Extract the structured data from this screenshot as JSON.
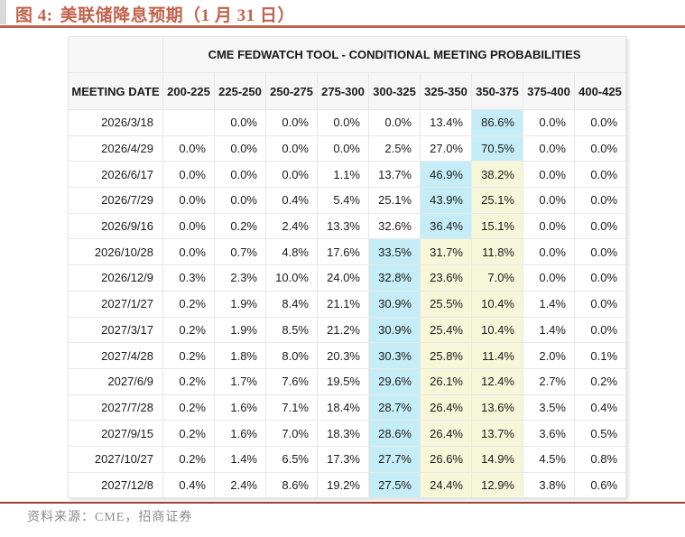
{
  "header": {
    "figure_label": "图 4:",
    "figure_title": "美联储降息预期（1 月 31 日）"
  },
  "footer": {
    "source": "资料来源：CME，招商证券"
  },
  "colors": {
    "accent": "#C2634D",
    "bottom_rule": "#9E4331",
    "header_bg": "#F6F6F6",
    "highlight_blue": "#C5EDF7",
    "highlight_yellow": "#F6F6D9"
  },
  "chart_data": {
    "type": "table",
    "title": "CME FEDWATCH TOOL - CONDITIONAL MEETING PROBABILITIES",
    "date_header": "MEETING DATE",
    "rate_ranges": [
      "200-225",
      "225-250",
      "250-275",
      "275-300",
      "300-325",
      "325-350",
      "350-375",
      "375-400",
      "400-425"
    ],
    "rows": [
      {
        "date": "2026/3/18",
        "values": [
          "",
          "0.0%",
          "0.0%",
          "0.0%",
          "0.0%",
          "13.4%",
          "86.6%",
          "0.0%",
          "0.0%"
        ],
        "highlights": {
          "6": "blue"
        }
      },
      {
        "date": "2026/4/29",
        "values": [
          "0.0%",
          "0.0%",
          "0.0%",
          "0.0%",
          "2.5%",
          "27.0%",
          "70.5%",
          "0.0%",
          "0.0%"
        ],
        "highlights": {
          "6": "blue"
        }
      },
      {
        "date": "2026/6/17",
        "values": [
          "0.0%",
          "0.0%",
          "0.0%",
          "1.1%",
          "13.7%",
          "46.9%",
          "38.2%",
          "0.0%",
          "0.0%"
        ],
        "highlights": {
          "5": "blue",
          "6": "yellow"
        }
      },
      {
        "date": "2026/7/29",
        "values": [
          "0.0%",
          "0.0%",
          "0.4%",
          "5.4%",
          "25.1%",
          "43.9%",
          "25.1%",
          "0.0%",
          "0.0%"
        ],
        "highlights": {
          "5": "blue",
          "6": "yellow"
        }
      },
      {
        "date": "2026/9/16",
        "values": [
          "0.0%",
          "0.2%",
          "2.4%",
          "13.3%",
          "32.6%",
          "36.4%",
          "15.1%",
          "0.0%",
          "0.0%"
        ],
        "highlights": {
          "5": "blue",
          "6": "yellow"
        }
      },
      {
        "date": "2026/10/28",
        "values": [
          "0.0%",
          "0.7%",
          "4.8%",
          "17.6%",
          "33.5%",
          "31.7%",
          "11.8%",
          "0.0%",
          "0.0%"
        ],
        "highlights": {
          "4": "blue",
          "5": "yellow",
          "6": "yellow"
        }
      },
      {
        "date": "2026/12/9",
        "values": [
          "0.3%",
          "2.3%",
          "10.0%",
          "24.0%",
          "32.8%",
          "23.6%",
          "7.0%",
          "0.0%",
          "0.0%"
        ],
        "highlights": {
          "4": "blue",
          "5": "yellow",
          "6": "yellow"
        }
      },
      {
        "date": "2027/1/27",
        "values": [
          "0.2%",
          "1.9%",
          "8.4%",
          "21.1%",
          "30.9%",
          "25.5%",
          "10.4%",
          "1.4%",
          "0.0%"
        ],
        "highlights": {
          "4": "blue",
          "5": "yellow",
          "6": "yellow"
        }
      },
      {
        "date": "2027/3/17",
        "values": [
          "0.2%",
          "1.9%",
          "8.5%",
          "21.2%",
          "30.9%",
          "25.4%",
          "10.4%",
          "1.4%",
          "0.0%"
        ],
        "highlights": {
          "4": "blue",
          "5": "yellow",
          "6": "yellow"
        }
      },
      {
        "date": "2027/4/28",
        "values": [
          "0.2%",
          "1.8%",
          "8.0%",
          "20.3%",
          "30.3%",
          "25.8%",
          "11.4%",
          "2.0%",
          "0.1%"
        ],
        "highlights": {
          "4": "blue",
          "5": "yellow",
          "6": "yellow"
        }
      },
      {
        "date": "2027/6/9",
        "values": [
          "0.2%",
          "1.7%",
          "7.6%",
          "19.5%",
          "29.6%",
          "26.1%",
          "12.4%",
          "2.7%",
          "0.2%"
        ],
        "highlights": {
          "4": "blue",
          "5": "yellow",
          "6": "yellow"
        }
      },
      {
        "date": "2027/7/28",
        "values": [
          "0.2%",
          "1.6%",
          "7.1%",
          "18.4%",
          "28.7%",
          "26.4%",
          "13.6%",
          "3.5%",
          "0.4%"
        ],
        "highlights": {
          "4": "blue",
          "5": "yellow",
          "6": "yellow"
        }
      },
      {
        "date": "2027/9/15",
        "values": [
          "0.2%",
          "1.6%",
          "7.0%",
          "18.3%",
          "28.6%",
          "26.4%",
          "13.7%",
          "3.6%",
          "0.5%"
        ],
        "highlights": {
          "4": "blue",
          "5": "yellow",
          "6": "yellow"
        }
      },
      {
        "date": "2027/10/27",
        "values": [
          "0.2%",
          "1.4%",
          "6.5%",
          "17.3%",
          "27.7%",
          "26.6%",
          "14.9%",
          "4.5%",
          "0.8%"
        ],
        "highlights": {
          "4": "blue",
          "5": "yellow",
          "6": "yellow"
        }
      },
      {
        "date": "2027/12/8",
        "values": [
          "0.4%",
          "2.4%",
          "8.6%",
          "19.2%",
          "27.5%",
          "24.4%",
          "12.9%",
          "3.8%",
          "0.6%"
        ],
        "highlights": {
          "4": "blue",
          "5": "yellow",
          "6": "yellow"
        }
      }
    ]
  }
}
